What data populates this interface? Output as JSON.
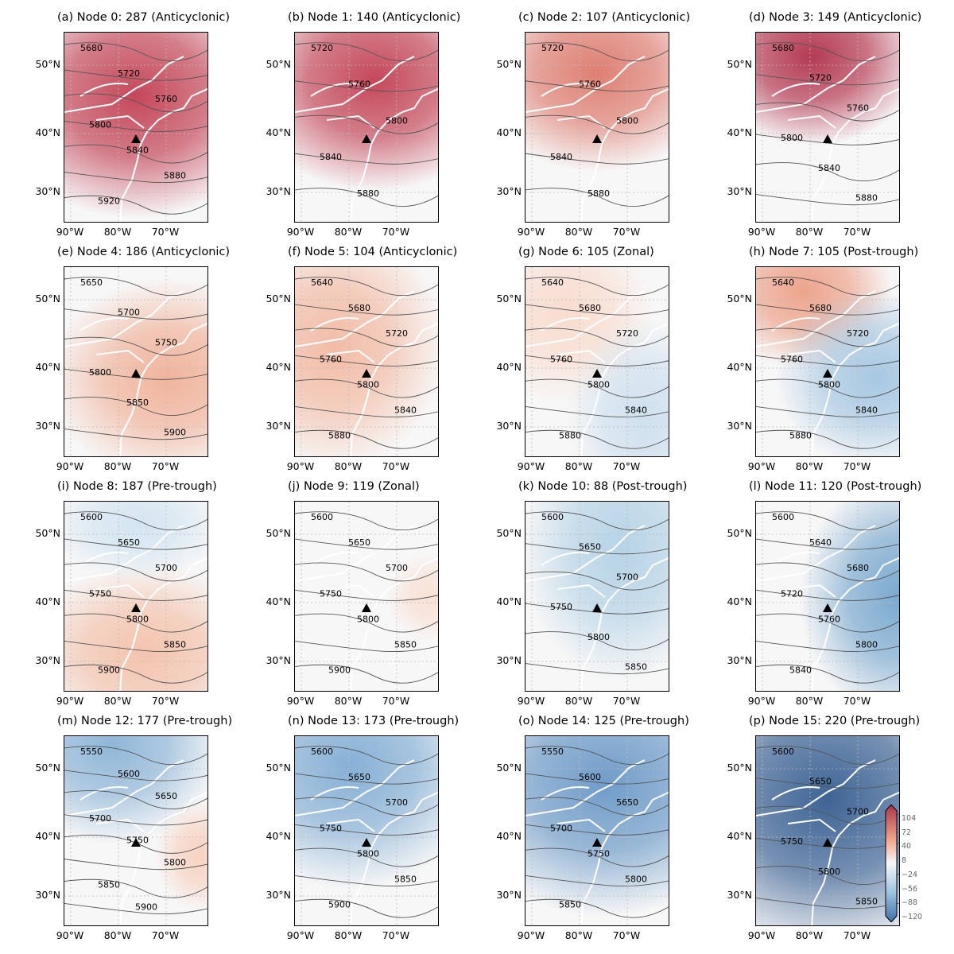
{
  "axes": {
    "lat_ticks": [
      "30°N",
      "40°N",
      "50°N"
    ],
    "lon_ticks": [
      "90°W",
      "80°W",
      "70°W"
    ]
  },
  "station_marker": "black-triangle",
  "colorbar": {
    "ticks": [
      "104",
      "72",
      "40",
      "8",
      "−24",
      "−56",
      "−88",
      "−120"
    ],
    "colormap": "RdBu_r",
    "extend": "both",
    "low_color": "#3f6ea6",
    "high_color": "#a5344a"
  },
  "panels": [
    {
      "title": "(a) Node 0: 287 (Anticyclonic)",
      "contours": [
        "5680",
        "5720",
        "5760",
        "5800",
        "5840",
        "5880",
        "5920"
      ],
      "anomaly_color": "#c4485a",
      "anomaly_sign": "positive"
    },
    {
      "title": "(b) Node 1: 140 (Anticyclonic)",
      "contours": [
        "5720",
        "5760",
        "5800",
        "5840",
        "5880"
      ],
      "anomaly_color": "#c4485a",
      "anomaly_sign": "positive"
    },
    {
      "title": "(c) Node 2: 107 (Anticyclonic)",
      "contours": [
        "5720",
        "5760",
        "5800",
        "5840",
        "5880"
      ],
      "anomaly_color": "#de7f72",
      "anomaly_sign": "positive"
    },
    {
      "title": "(d) Node 3: 149 (Anticyclonic)",
      "contours": [
        "5680",
        "5720",
        "5760",
        "5800",
        "5840",
        "5880"
      ],
      "anomaly_color": "#b43a52",
      "anomaly_sign": "positive"
    },
    {
      "title": "(e) Node 4: 186 (Anticyclonic)",
      "contours": [
        "5650",
        "5700",
        "5750",
        "5800",
        "5850",
        "5900"
      ],
      "anomaly_color": "#f0b49c",
      "anomaly_sign": "positive"
    },
    {
      "title": "(f) Node 5: 104 (Anticyclonic)",
      "contours": [
        "5640",
        "5680",
        "5720",
        "5760",
        "5800",
        "5840",
        "5880"
      ],
      "anomaly_color": "#f2bca6",
      "anomaly_sign": "positive"
    },
    {
      "title": "(g) Node 6: 105 (Zonal)",
      "contours": [
        "5640",
        "5680",
        "5720",
        "5760",
        "5800",
        "5840",
        "5880"
      ],
      "anomaly_color": "#f8dccf",
      "anomaly_sign": "mixed"
    },
    {
      "title": "(h) Node 7: 105 (Post-trough)",
      "contours": [
        "5640",
        "5680",
        "5720",
        "5760",
        "5800",
        "5840",
        "5880"
      ],
      "anomaly_color": "#eda48c",
      "anomaly_sign": "mixed"
    },
    {
      "title": "(i) Node 8: 187 (Pre-trough)",
      "contours": [
        "5600",
        "5650",
        "5700",
        "5750",
        "5800",
        "5850",
        "5900"
      ],
      "anomaly_color": "#f3c3ad",
      "anomaly_sign": "mixed"
    },
    {
      "title": "(j) Node 9: 119 (Zonal)",
      "contours": [
        "5600",
        "5650",
        "5700",
        "5750",
        "5800",
        "5850",
        "5900"
      ],
      "anomaly_color": "#f4f4f4",
      "anomaly_sign": "neutral"
    },
    {
      "title": "(k) Node 10: 88 (Post-trough)",
      "contours": [
        "5600",
        "5650",
        "5700",
        "5750",
        "5800",
        "5850"
      ],
      "anomaly_color": "#b6d3e6",
      "anomaly_sign": "negative"
    },
    {
      "title": "(l) Node 11: 120 (Post-trough)",
      "contours": [
        "5600",
        "5640",
        "5680",
        "5720",
        "5760",
        "5800",
        "5840"
      ],
      "anomaly_color": "#7aa9cf",
      "anomaly_sign": "negative"
    },
    {
      "title": "(m) Node 12: 177 (Pre-trough)",
      "contours": [
        "5550",
        "5600",
        "5650",
        "5700",
        "5750",
        "5800",
        "5850",
        "5900"
      ],
      "anomaly_color": "#8fb6d8",
      "anomaly_sign": "negative"
    },
    {
      "title": "(n) Node 13: 173 (Pre-trough)",
      "contours": [
        "5600",
        "5650",
        "5700",
        "5750",
        "5800",
        "5850",
        "5900"
      ],
      "anomaly_color": "#86b0d5",
      "anomaly_sign": "negative"
    },
    {
      "title": "(o) Node 14: 125 (Pre-trough)",
      "contours": [
        "5550",
        "5600",
        "5650",
        "5700",
        "5750",
        "5800",
        "5850"
      ],
      "anomaly_color": "#6f9cc8",
      "anomaly_sign": "negative"
    },
    {
      "title": "(p) Node 15: 220 (Pre-trough)",
      "contours": [
        "5600",
        "5650",
        "5700",
        "5750",
        "5800",
        "5850"
      ],
      "anomaly_color": "#3e6495",
      "anomaly_sign": "negative"
    }
  ]
}
